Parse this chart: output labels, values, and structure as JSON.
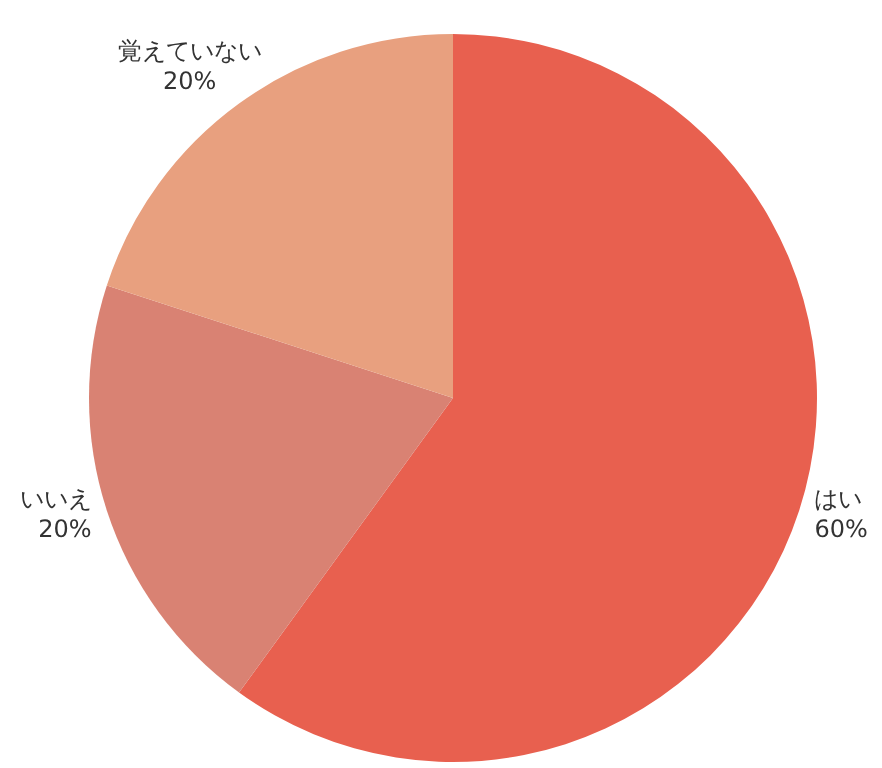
{
  "chart_data": {
    "type": "pie",
    "categories": [
      "はい",
      "いいえ",
      "覚えていない"
    ],
    "values": [
      60,
      20,
      20
    ],
    "value_labels": [
      "60%",
      "20%",
      "20%"
    ],
    "colors": [
      "#e8604f",
      "#d98273",
      "#e8a07f"
    ],
    "legend": false
  }
}
